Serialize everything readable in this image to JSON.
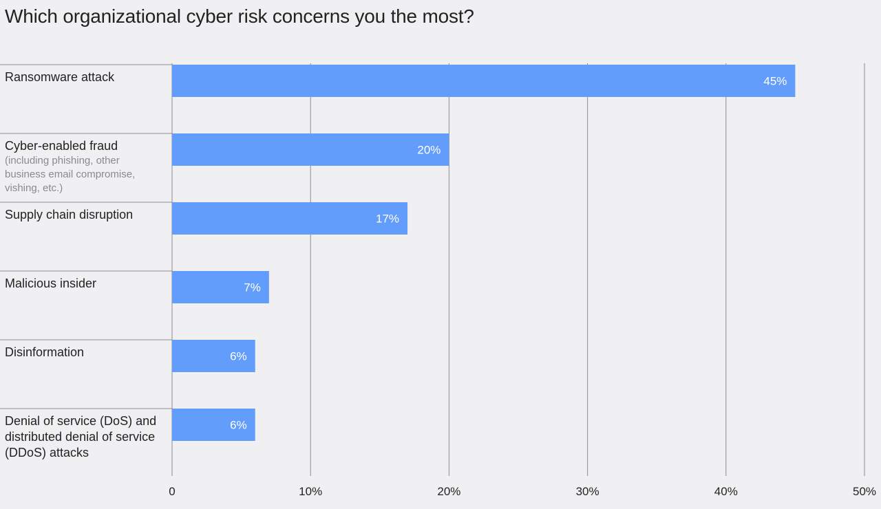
{
  "chart_data": {
    "type": "bar",
    "orientation": "horizontal",
    "title": "Which organizational cyber risk concerns you the most?",
    "categories": [
      {
        "label": "Ransomware attack",
        "sublabel": ""
      },
      {
        "label": "Cyber-enabled fraud",
        "sublabel": "(including phishing, other business email compromise, vishing, etc.)"
      },
      {
        "label": "Supply chain disruption",
        "sublabel": ""
      },
      {
        "label": "Malicious insider",
        "sublabel": ""
      },
      {
        "label": "Disinformation",
        "sublabel": ""
      },
      {
        "label": "Denial of service (DoS) and distributed denial of service (DDoS) attacks",
        "sublabel": ""
      }
    ],
    "values": [
      45,
      20,
      17,
      7,
      6,
      6
    ],
    "data_labels": [
      "45%",
      "20%",
      "17%",
      "7%",
      "6%",
      "6%"
    ],
    "xlim": [
      0,
      50
    ],
    "x_ticks": [
      0,
      10,
      20,
      30,
      40,
      50
    ],
    "x_tick_labels": [
      "0",
      "10%",
      "20%",
      "30%",
      "40%",
      "50%"
    ],
    "xlabel": "",
    "ylabel": "",
    "grid": true,
    "legend": "none",
    "colors": {
      "bar": "#639dfc",
      "grid": "#8c8c92",
      "text": "#222222",
      "subtext": "#8a8a8e",
      "bar_label": "#ffffff"
    }
  }
}
